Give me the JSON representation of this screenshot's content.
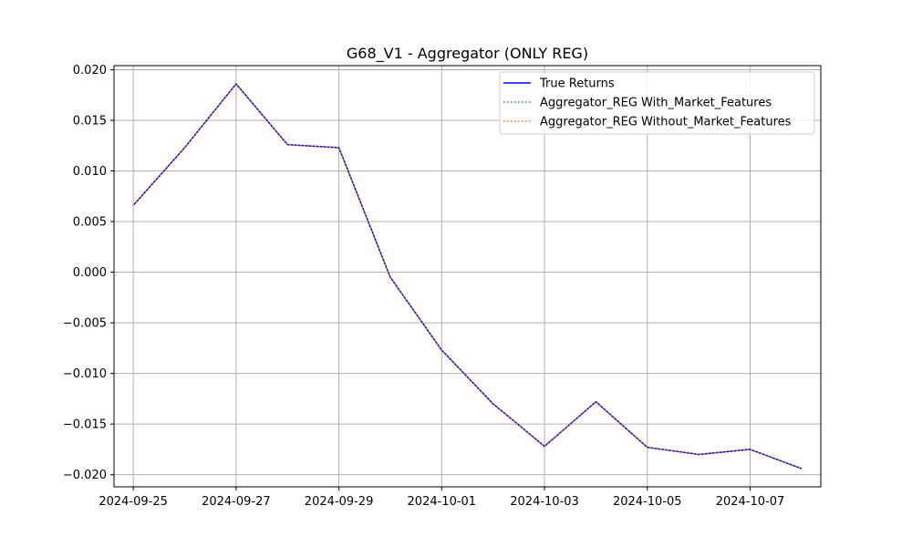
{
  "chart_data": {
    "type": "line",
    "title": "G68_V1 - Aggregator (ONLY REG)",
    "xlabel": "",
    "ylabel": "",
    "grid": true,
    "legend_position": "top-right",
    "x": [
      "2024-09-25",
      "2024-09-26",
      "2024-09-27",
      "2024-09-28",
      "2024-09-29",
      "2024-09-30",
      "2024-10-01",
      "2024-10-02",
      "2024-10-03",
      "2024-10-04",
      "2024-10-05",
      "2024-10-06",
      "2024-10-07",
      "2024-10-08"
    ],
    "x_ticks": [
      "2024-09-25",
      "2024-09-27",
      "2024-09-29",
      "2024-10-01",
      "2024-10-03",
      "2024-10-05",
      "2024-10-07"
    ],
    "y_ticks": [
      "0.020",
      "0.015",
      "0.010",
      "0.005",
      "0.000",
      "−0.005",
      "−0.010",
      "−0.015",
      "−0.020"
    ],
    "ylim": [
      -0.0212,
      0.0204
    ],
    "xlim": [
      "2024-09-24T15:00",
      "2024-10-08T09:00"
    ],
    "series": [
      {
        "name": "True Returns",
        "color": "#0000ff",
        "style": "solid",
        "values": [
          0.0066,
          0.0123,
          0.0186,
          0.0126,
          0.0123,
          -0.0005,
          -0.0077,
          -0.013,
          -0.0172,
          -0.0128,
          -0.0173,
          -0.018,
          -0.0175,
          -0.0194
        ]
      },
      {
        "name": "Aggregator_REG With_Market_Features",
        "color": "#1f77b4",
        "style": "dotted",
        "values": [
          0.0066,
          0.0123,
          0.0186,
          0.0126,
          0.0123,
          -0.0005,
          -0.0077,
          -0.013,
          -0.0172,
          -0.0128,
          -0.0173,
          -0.018,
          -0.0175,
          -0.0194
        ]
      },
      {
        "name": "Aggregator_REG Without_Market_Features",
        "color": "#ff7f0e",
        "style": "dotted",
        "values": [
          0.0066,
          0.0123,
          0.0186,
          0.0126,
          0.0123,
          -0.0005,
          -0.0077,
          -0.013,
          -0.0172,
          -0.0128,
          -0.0173,
          -0.018,
          -0.0175,
          -0.0194
        ]
      }
    ]
  }
}
